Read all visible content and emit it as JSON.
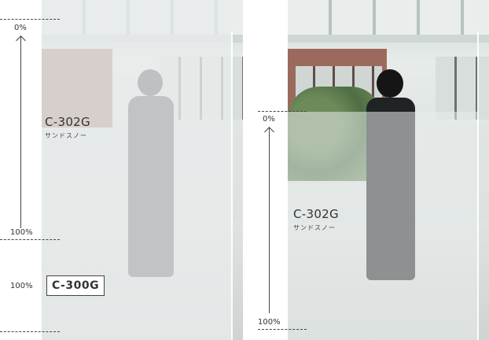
{
  "left_panel": {
    "film_code": "C-302G",
    "film_name": "サンドスノー",
    "scale_top": "0%",
    "scale_bottom": "100%",
    "base_percent": "100%",
    "base_code": "C-300G"
  },
  "right_panel": {
    "film_code": "C-302G",
    "film_name": "サンドスノー",
    "scale_top": "0%",
    "scale_bottom": "100%"
  }
}
